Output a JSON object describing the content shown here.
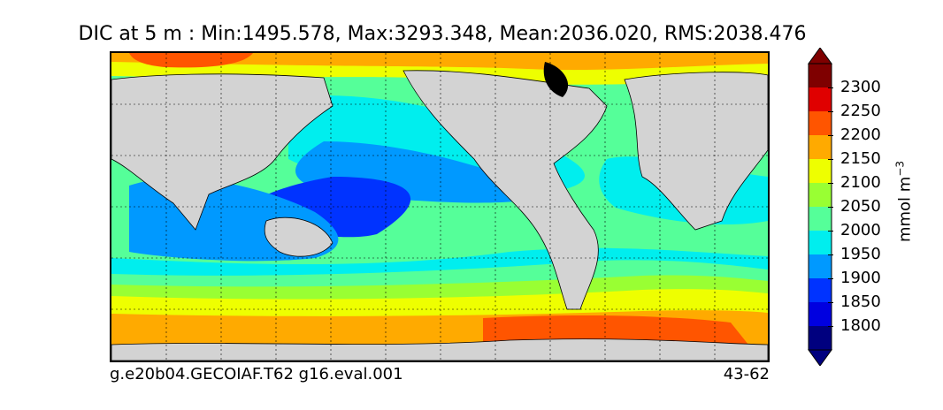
{
  "title": "DIC at 5 m : Min:1495.578, Max:3293.348, Mean:2036.020, RMS:2038.476",
  "footer": {
    "case_name": "g.e20b04.GECOIAF.T62 g16.eval.001",
    "year_range": "43-62"
  },
  "colorbar": {
    "unit_main": "mmol m",
    "unit_exp": "−3",
    "extend": "both",
    "levels": [
      "1800",
      "1850",
      "1900",
      "1950",
      "2000",
      "2050",
      "2100",
      "2150",
      "2200",
      "2250",
      "2300"
    ],
    "colors": [
      "#00007f",
      "#0000e0",
      "#0033ff",
      "#0099ff",
      "#00eeee",
      "#55ff99",
      "#99ff33",
      "#eeff00",
      "#ffaa00",
      "#ff5500",
      "#e00000",
      "#7f0000"
    ],
    "arrow_color": "#000000"
  },
  "map": {
    "projection": "cylindrical",
    "land_color": "#d3d3d3",
    "gridlines": "dotted",
    "field": "DIC",
    "depth": "5 m"
  }
}
